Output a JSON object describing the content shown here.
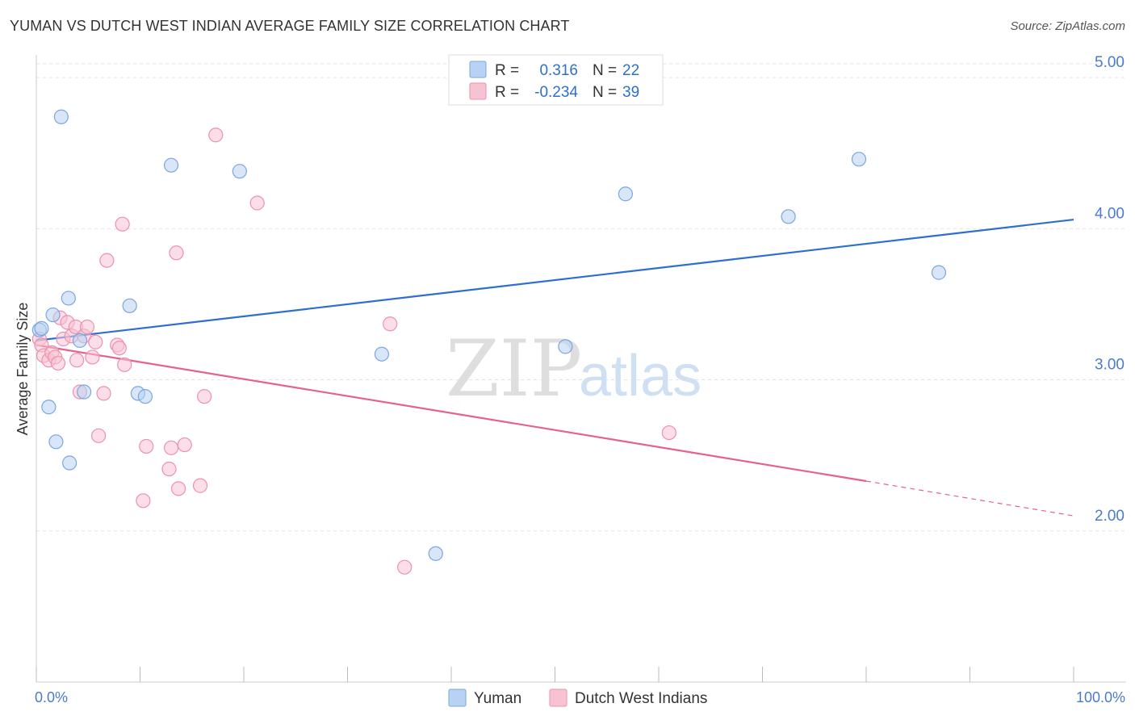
{
  "title": "YUMAN VS DUTCH WEST INDIAN AVERAGE FAMILY SIZE CORRELATION CHART",
  "source": "Source: ZipAtlas.com",
  "watermark": {
    "zip": "ZIP",
    "atlas": "atlas"
  },
  "legend_top": [
    {
      "r_label": "R =",
      "r_value": "0.316",
      "n_label": "N =",
      "n_value": "22"
    },
    {
      "r_label": "R =",
      "r_value": "-0.234",
      "n_label": "N =",
      "n_value": "39"
    }
  ],
  "colors": {
    "yuman_fill": "#b8d2f3",
    "yuman_stroke": "#7aa6e0",
    "yuman_line": "#2e6fce",
    "dutch_fill": "#f7c3d3",
    "dutch_stroke": "#ec91ae",
    "dutch_line": "#e5628f",
    "tick_text": "#4a7bd0",
    "grid": "#e3e3e3"
  },
  "chart_data": {
    "type": "scatter",
    "ylabel": "Average Family Size",
    "xlim": [
      0,
      100
    ],
    "ylim": [
      1.0,
      5.15
    ],
    "y_ticks": [
      {
        "value": 2.0,
        "label": "2.00"
      },
      {
        "value": 3.0,
        "label": "3.00"
      },
      {
        "value": 4.0,
        "label": "4.00"
      },
      {
        "value": 5.0,
        "label": "5.00"
      }
    ],
    "x_tick_labels": [
      {
        "value": 0,
        "label": "0.0%"
      },
      {
        "value": 100,
        "label": "100.0%"
      }
    ],
    "x_minor_ticks": [
      0,
      10,
      20,
      30,
      40,
      50,
      60,
      70,
      80,
      90,
      100
    ],
    "grid": true,
    "series": [
      {
        "name": "Yuman",
        "color": "#7aa6e0",
        "r": 0.316,
        "n": 22,
        "points": [
          [
            0.3,
            3.33
          ],
          [
            0.5,
            3.34
          ],
          [
            1.2,
            2.82
          ],
          [
            1.6,
            3.43
          ],
          [
            1.9,
            2.59
          ],
          [
            2.4,
            4.74
          ],
          [
            3.1,
            3.54
          ],
          [
            3.2,
            2.45
          ],
          [
            4.2,
            3.26
          ],
          [
            4.6,
            2.92
          ],
          [
            9.0,
            3.49
          ],
          [
            9.8,
            2.91
          ],
          [
            10.5,
            2.89
          ],
          [
            13.0,
            4.42
          ],
          [
            19.6,
            4.38
          ],
          [
            33.3,
            3.17
          ],
          [
            38.5,
            1.85
          ],
          [
            51.0,
            3.22
          ],
          [
            56.8,
            4.23
          ],
          [
            72.5,
            4.08
          ],
          [
            79.3,
            4.46
          ],
          [
            87.0,
            3.71
          ]
        ],
        "trend": {
          "x0": 0,
          "y0": 3.26,
          "x1": 100,
          "y1": 4.06
        }
      },
      {
        "name": "Dutch West Indians",
        "color": "#ec91ae",
        "r": -0.234,
        "n": 39,
        "points": [
          [
            0.3,
            3.27
          ],
          [
            0.5,
            3.23
          ],
          [
            0.7,
            3.16
          ],
          [
            1.2,
            3.13
          ],
          [
            1.5,
            3.18
          ],
          [
            1.8,
            3.15
          ],
          [
            2.1,
            3.11
          ],
          [
            2.3,
            3.41
          ],
          [
            2.6,
            3.27
          ],
          [
            3.0,
            3.38
          ],
          [
            3.4,
            3.29
          ],
          [
            3.8,
            3.35
          ],
          [
            3.9,
            3.13
          ],
          [
            4.2,
            2.92
          ],
          [
            4.6,
            3.29
          ],
          [
            4.9,
            3.35
          ],
          [
            5.4,
            3.15
          ],
          [
            5.7,
            3.25
          ],
          [
            6.0,
            2.63
          ],
          [
            6.5,
            2.91
          ],
          [
            6.8,
            3.79
          ],
          [
            7.8,
            3.23
          ],
          [
            8.0,
            3.21
          ],
          [
            8.3,
            4.03
          ],
          [
            8.5,
            3.1
          ],
          [
            10.3,
            2.2
          ],
          [
            10.6,
            2.56
          ],
          [
            12.8,
            2.41
          ],
          [
            13.0,
            2.55
          ],
          [
            13.5,
            3.84
          ],
          [
            13.7,
            2.28
          ],
          [
            14.3,
            2.57
          ],
          [
            15.8,
            2.3
          ],
          [
            16.2,
            2.89
          ],
          [
            17.3,
            4.62
          ],
          [
            21.3,
            4.17
          ],
          [
            34.1,
            3.37
          ],
          [
            35.5,
            1.76
          ],
          [
            61.0,
            2.65
          ]
        ],
        "trend": {
          "x0": 0,
          "y0": 3.23,
          "x1": 80,
          "y1": 2.33,
          "dashed_to": {
            "x": 100,
            "y": 2.1
          }
        }
      }
    ]
  }
}
